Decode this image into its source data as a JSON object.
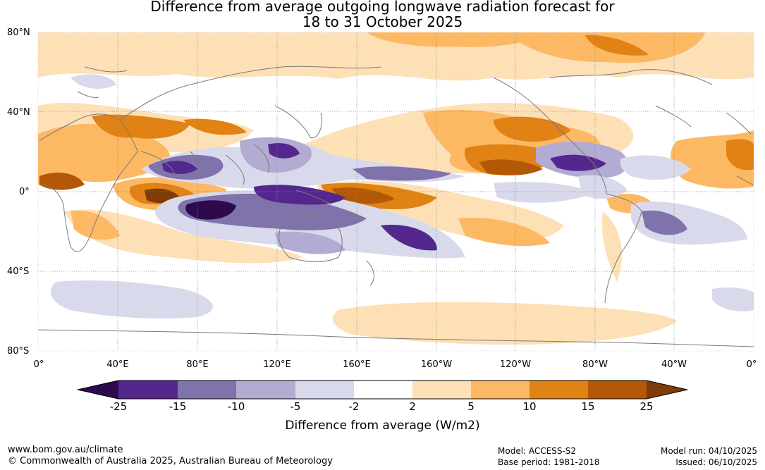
{
  "title": {
    "line1": "Difference from average outgoing longwave radiation forecast for",
    "line2": "18 to 31 October 2025"
  },
  "map": {
    "lat_labels": [
      "80°N",
      "40°N",
      "0°",
      "40°S",
      "80°S"
    ],
    "lon_labels": [
      "0°",
      "40°E",
      "80°E",
      "120°E",
      "160°E",
      "160°W",
      "120°W",
      "80°W",
      "40°W",
      "0°"
    ]
  },
  "colorbar": {
    "ticks": [
      "-25",
      "-15",
      "-10",
      "-5",
      "-2",
      "2",
      "5",
      "10",
      "15",
      "25"
    ],
    "colors": [
      "#2d0a4e",
      "#54278f",
      "#8073ac",
      "#b2abd2",
      "#d8daeb",
      "#ffffff",
      "#fee0b6",
      "#fdb863",
      "#e08214",
      "#b35806",
      "#7f3b08"
    ],
    "label": "Difference from average (W/m2)"
  },
  "footer": {
    "url": "www.bom.gov.au/climate",
    "copyright": "© Commonwealth of Australia 2025, Australian Bureau of Meteorology",
    "model": "Model: ACCESS-S2",
    "base_period": "Base period: 1981-2018",
    "model_run": "Model run: 04/10/2025",
    "issued": "Issued: 06/10/2025"
  }
}
